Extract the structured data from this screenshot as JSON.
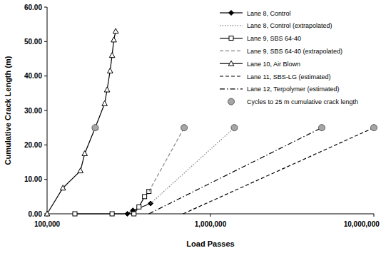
{
  "chart_data": {
    "type": "line",
    "x_label": "Load Passes",
    "y_label": "Cumulative Crack Length (m)",
    "log": "x",
    "grid": false,
    "legend": "upper right",
    "xlim": [
      100000,
      10000000
    ],
    "xticks": [
      {
        "value": 100000,
        "label": "100,000"
      },
      {
        "value": 1000000,
        "label": "1,000,000"
      },
      {
        "value": 10000000,
        "label": "10,000,000"
      }
    ],
    "ylim": [
      0,
      60
    ],
    "yticks": [
      {
        "value": 0,
        "label": "0.00"
      },
      {
        "value": 10,
        "label": "10.00"
      },
      {
        "value": 20,
        "label": "20.00"
      },
      {
        "value": 30,
        "label": "30.00"
      },
      {
        "value": 40,
        "label": "40.00"
      },
      {
        "value": 50,
        "label": "50.00"
      },
      {
        "value": 60,
        "label": "60.00"
      }
    ],
    "series": [
      {
        "name": "Lane 8, Control",
        "color": "#000000",
        "marker": "diamond",
        "line_style": "solid",
        "x": [
          310000,
          335000,
          430000
        ],
        "values": [
          0,
          1,
          3
        ]
      },
      {
        "name": "Lane 8, Control (extrapolated)",
        "color": "#808080",
        "marker": "none",
        "line_style": "dotted",
        "x": [
          430000,
          1400000
        ],
        "values": [
          3,
          25
        ]
      },
      {
        "name": "Lane 9, SBS 64-40",
        "color": "#000000",
        "marker": "square",
        "line_style": "solid",
        "x": [
          148000,
          250000,
          340000,
          365000,
          395000,
          420000
        ],
        "values": [
          0,
          0,
          0,
          2,
          5,
          6.5
        ]
      },
      {
        "name": "Lane 9, SBS 64-40 (extrapolated)",
        "color": "#808080",
        "marker": "none",
        "line_style": "dashed",
        "x": [
          420000,
          690000
        ],
        "values": [
          6.5,
          25
        ]
      },
      {
        "name": "Lane 10, Air Blown",
        "color": "#000000",
        "marker": "triangle",
        "line_style": "solid",
        "x": [
          100000,
          125000,
          160000,
          170000,
          197000,
          225000,
          233000,
          243000,
          250000,
          256000,
          263000
        ],
        "values": [
          0,
          7.5,
          12.5,
          17.5,
          25,
          32,
          36,
          41.5,
          46,
          50.5,
          53
        ]
      },
      {
        "name": "Lane 11, SBS-LG (estimated)",
        "color": "#000000",
        "marker": "none",
        "line_style": "dashed",
        "x": [
          680000,
          10000000
        ],
        "values": [
          0,
          25
        ]
      },
      {
        "name": "Lane 12, Terpolymer (estimated)",
        "color": "#000000",
        "marker": "none",
        "line_style": "dashdot",
        "x": [
          420000,
          4800000
        ],
        "values": [
          0,
          25
        ]
      },
      {
        "name": "Cycles to 25 m cumulative crack length",
        "type": "scatter",
        "color": "#a6a6a6",
        "marker": "circle",
        "line_style": "none",
        "x": [
          197000,
          690000,
          1400000,
          4800000,
          10000000
        ],
        "values": [
          25,
          25,
          25,
          25,
          25
        ]
      }
    ]
  }
}
